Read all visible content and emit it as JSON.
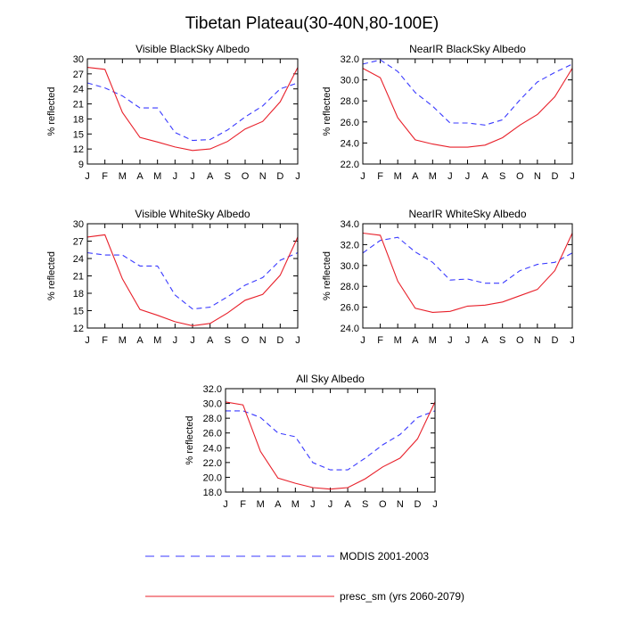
{
  "figure": {
    "title": "Tibetan Plateau(30-40N,80-100E)",
    "legend": [
      {
        "label": "MODIS 2001-2003",
        "color": "#3a3aff",
        "dash": true
      },
      {
        "label": "presc_sm (yrs 2060-2079)",
        "color": "#e8202a",
        "dash": false
      }
    ]
  },
  "chart_data": [
    {
      "type": "line",
      "title": "Visible BlackSky Albedo",
      "ylabel": "% reflected",
      "xlabel": "",
      "categories": [
        "J",
        "F",
        "M",
        "A",
        "M",
        "J",
        "J",
        "A",
        "S",
        "O",
        "N",
        "D",
        "J"
      ],
      "ylim": [
        9,
        30
      ],
      "yticks": [
        9,
        12,
        15,
        18,
        21,
        24,
        27,
        30
      ],
      "ytick_labels": [
        "9",
        "12",
        "15",
        "18",
        "21",
        "24",
        "27",
        "30"
      ],
      "series": [
        {
          "name": "MODIS 2001-2003",
          "color": "#3a3aff",
          "dashed": true,
          "values": [
            25.2,
            24.2,
            22.6,
            20.2,
            20.2,
            15.3,
            13.7,
            13.9,
            15.8,
            18.4,
            20.6,
            24.0,
            25.2
          ]
        },
        {
          "name": "presc_sm (yrs 2060-2079)",
          "color": "#e8202a",
          "dashed": false,
          "values": [
            28.3,
            27.9,
            19.3,
            14.3,
            13.4,
            12.4,
            11.7,
            12.0,
            13.5,
            16.0,
            17.5,
            21.4,
            28.3
          ]
        }
      ]
    },
    {
      "type": "line",
      "title": "NearIR BlackSky Albedo",
      "ylabel": "% reflected",
      "xlabel": "",
      "categories": [
        "J",
        "F",
        "M",
        "A",
        "M",
        "J",
        "J",
        "A",
        "S",
        "O",
        "N",
        "D",
        "J"
      ],
      "ylim": [
        22,
        32
      ],
      "yticks": [
        22,
        24,
        26,
        28,
        30,
        32
      ],
      "ytick_labels": [
        "22.0",
        "24.0",
        "26.0",
        "28.0",
        "30.0",
        "32.0"
      ],
      "series": [
        {
          "name": "MODIS 2001-2003",
          "color": "#3a3aff",
          "dashed": true,
          "values": [
            31.5,
            31.9,
            30.8,
            28.8,
            27.5,
            25.9,
            25.9,
            25.7,
            26.2,
            28.1,
            29.8,
            30.7,
            31.5
          ]
        },
        {
          "name": "presc_sm (yrs 2060-2079)",
          "color": "#e8202a",
          "dashed": false,
          "values": [
            31.1,
            30.2,
            26.4,
            24.3,
            23.9,
            23.6,
            23.6,
            23.8,
            24.5,
            25.7,
            26.7,
            28.4,
            31.1
          ]
        }
      ]
    },
    {
      "type": "line",
      "title": "Visible WhiteSky Albedo",
      "ylabel": "% reflected",
      "xlabel": "",
      "categories": [
        "J",
        "F",
        "M",
        "A",
        "M",
        "J",
        "J",
        "A",
        "S",
        "O",
        "N",
        "D",
        "J"
      ],
      "ylim": [
        12,
        30
      ],
      "yticks": [
        12,
        15,
        18,
        21,
        24,
        27,
        30
      ],
      "ytick_labels": [
        "12",
        "15",
        "18",
        "21",
        "24",
        "27",
        "30"
      ],
      "series": [
        {
          "name": "MODIS 2001-2003",
          "color": "#3a3aff",
          "dashed": true,
          "values": [
            25.0,
            24.6,
            24.6,
            22.7,
            22.7,
            17.7,
            15.3,
            15.6,
            17.4,
            19.4,
            20.7,
            23.7,
            25.0
          ]
        },
        {
          "name": "presc_sm (yrs 2060-2079)",
          "color": "#e8202a",
          "dashed": false,
          "values": [
            27.7,
            28.1,
            20.5,
            15.2,
            14.2,
            13.1,
            12.4,
            12.8,
            14.6,
            16.8,
            17.8,
            21.1,
            27.7
          ]
        }
      ]
    },
    {
      "type": "line",
      "title": "NearIR WhiteSky Albedo",
      "ylabel": "% reflected",
      "xlabel": "",
      "categories": [
        "J",
        "F",
        "M",
        "A",
        "M",
        "J",
        "J",
        "A",
        "S",
        "O",
        "N",
        "D",
        "J"
      ],
      "ylim": [
        24,
        34
      ],
      "yticks": [
        24,
        26,
        28,
        30,
        32,
        34
      ],
      "ytick_labels": [
        "24.0",
        "26.0",
        "28.0",
        "30.0",
        "32.0",
        "34.0"
      ],
      "series": [
        {
          "name": "MODIS 2001-2003",
          "color": "#3a3aff",
          "dashed": true,
          "values": [
            31.2,
            32.4,
            32.7,
            31.3,
            30.3,
            28.6,
            28.7,
            28.3,
            28.3,
            29.5,
            30.1,
            30.3,
            31.2
          ]
        },
        {
          "name": "presc_sm (yrs 2060-2079)",
          "color": "#e8202a",
          "dashed": false,
          "values": [
            33.1,
            32.9,
            28.5,
            25.9,
            25.5,
            25.6,
            26.1,
            26.2,
            26.5,
            27.1,
            27.7,
            29.5,
            33.1
          ]
        }
      ]
    },
    {
      "type": "line",
      "title": "All Sky Albedo",
      "ylabel": "% reflected",
      "xlabel": "",
      "categories": [
        "J",
        "F",
        "M",
        "A",
        "M",
        "J",
        "J",
        "A",
        "S",
        "O",
        "N",
        "D",
        "J"
      ],
      "ylim": [
        18,
        32
      ],
      "yticks": [
        18,
        20,
        22,
        24,
        26,
        28,
        30,
        32
      ],
      "ytick_labels": [
        "18.0",
        "20.0",
        "22.0",
        "24.0",
        "26.0",
        "28.0",
        "30.0",
        "32.0"
      ],
      "series": [
        {
          "name": "MODIS 2001-2003",
          "color": "#3a3aff",
          "dashed": true,
          "values": [
            29.0,
            29.0,
            28.1,
            26.0,
            25.5,
            22.0,
            21.0,
            21.0,
            22.6,
            24.4,
            25.8,
            28.1,
            29.0
          ]
        },
        {
          "name": "presc_sm (yrs 2060-2079)",
          "color": "#e8202a",
          "dashed": false,
          "values": [
            30.2,
            29.8,
            23.5,
            19.9,
            19.2,
            18.6,
            18.4,
            18.6,
            19.8,
            21.4,
            22.6,
            25.2,
            30.2
          ]
        }
      ]
    }
  ]
}
